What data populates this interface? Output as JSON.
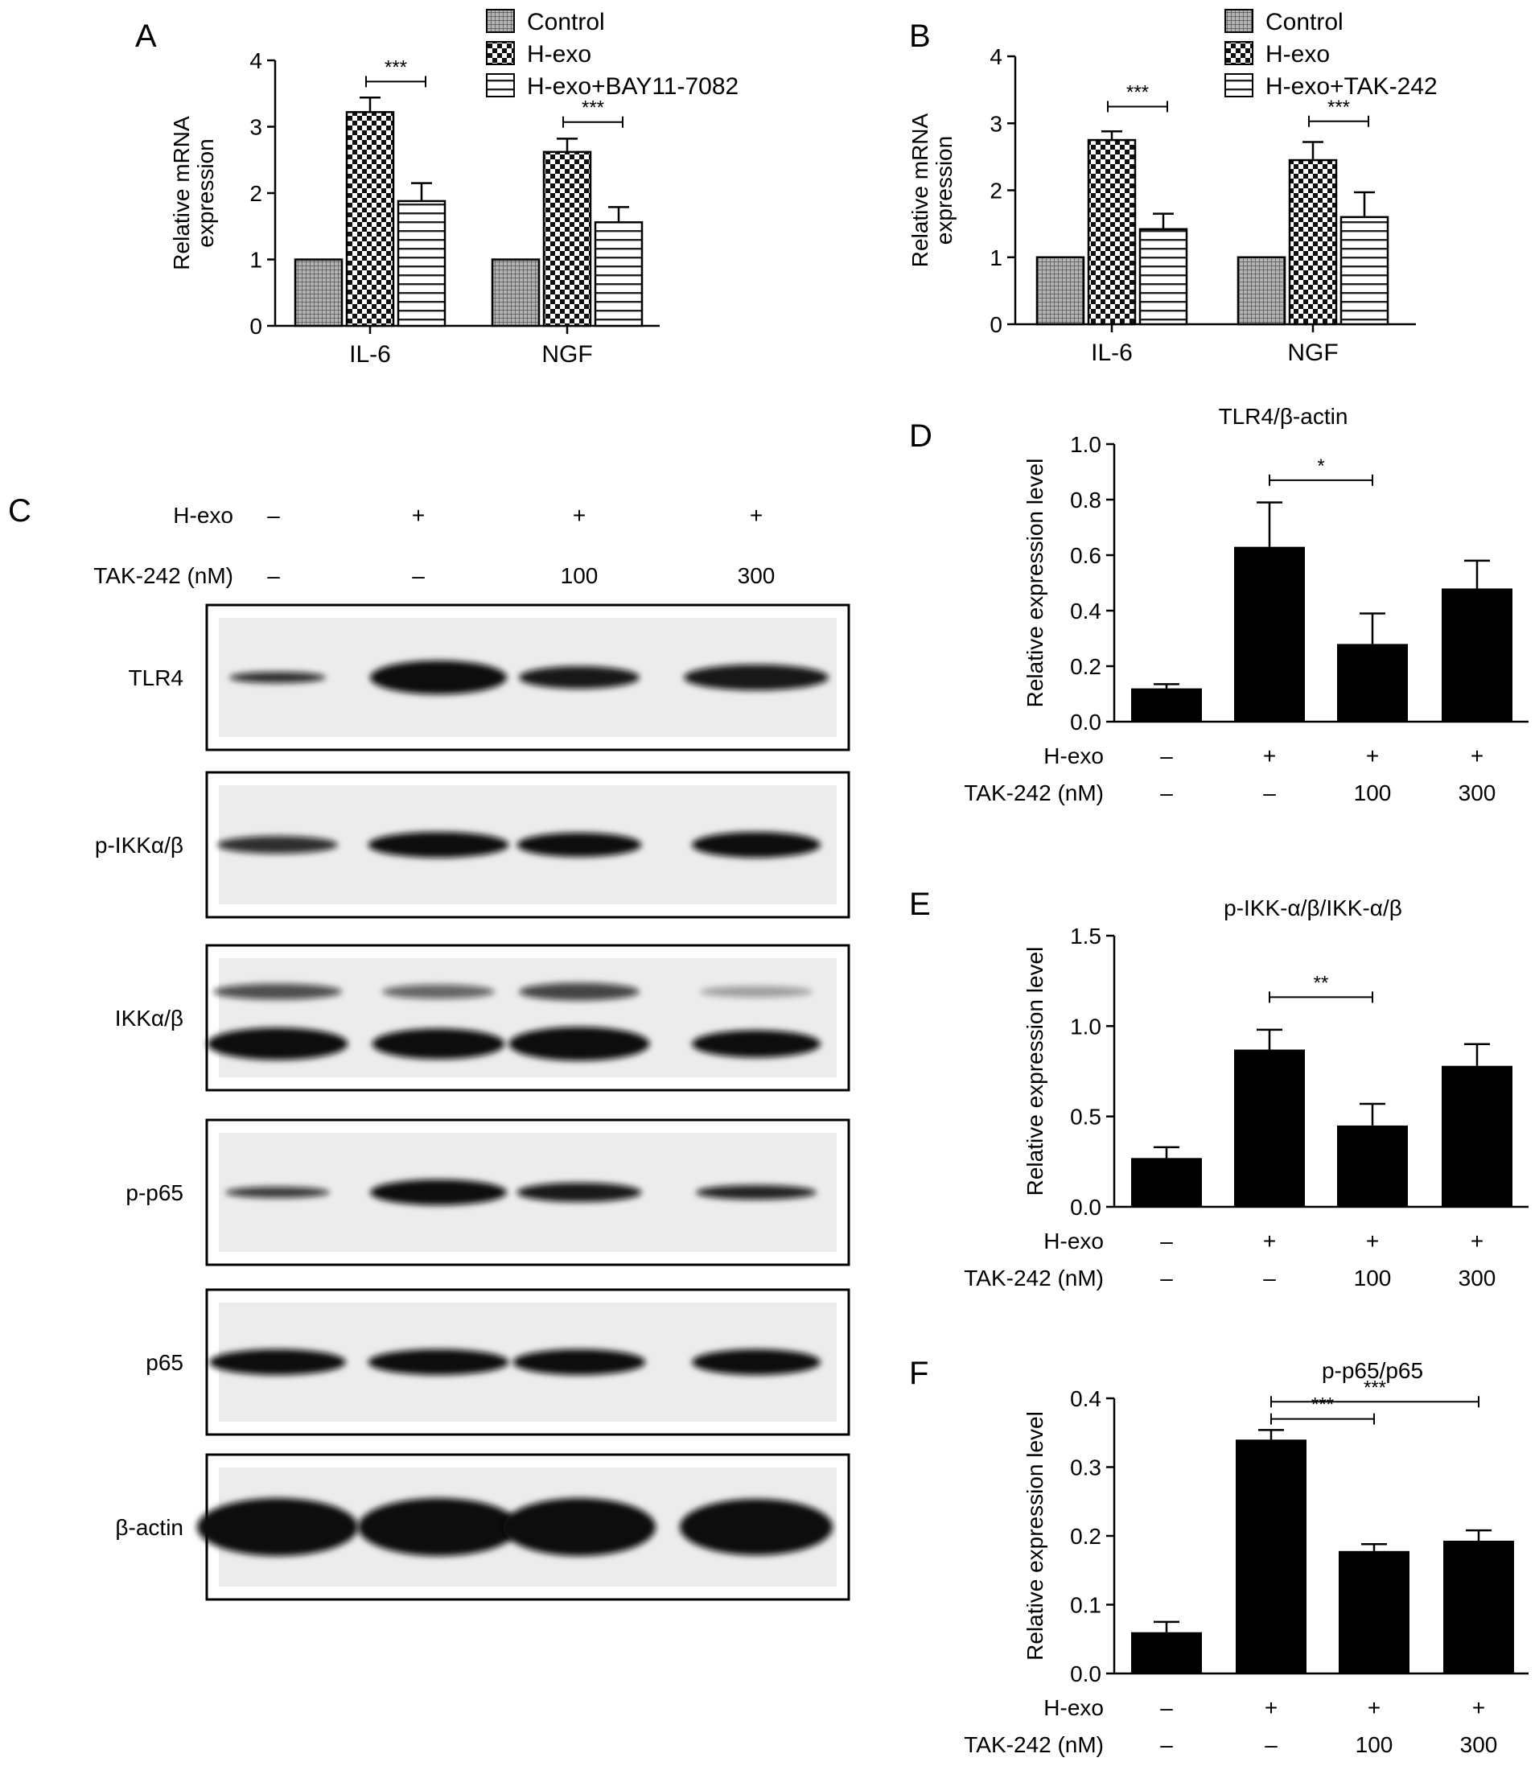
{
  "panels": {
    "A": {
      "letter": "A"
    },
    "B": {
      "letter": "B"
    },
    "C": {
      "letter": "C"
    },
    "D": {
      "letter": "D"
    },
    "E": {
      "letter": "E"
    },
    "F": {
      "letter": "F"
    }
  },
  "blot": {
    "row_labels": {
      "hexo": "H-exo",
      "tak": "TAK-242 (nM)"
    },
    "hexo_marks": [
      "–",
      "+",
      "+",
      "+"
    ],
    "tak_marks": [
      "–",
      "–",
      "100",
      "300"
    ],
    "proteins": [
      "TLR4",
      "p-IKKα/β",
      "IKKα/β",
      "p-p65",
      "p65",
      "β-actin"
    ]
  },
  "chart_data": [
    {
      "id": "A",
      "type": "bar",
      "title": "",
      "ylabel": "Relative mRNA expression",
      "ylabel_lines": [
        "Relative mRNA",
        "expression"
      ],
      "categories": [
        "IL-6",
        "NGF"
      ],
      "ylim": [
        0,
        4
      ],
      "yticks": [
        "0",
        "1",
        "2",
        "3",
        "4"
      ],
      "series": [
        {
          "name": "Control",
          "pattern": "grid",
          "values": [
            1.0,
            1.0
          ],
          "errors": [
            0,
            0
          ]
        },
        {
          "name": "H-exo",
          "pattern": "checker",
          "values": [
            3.22,
            2.62
          ],
          "errors": [
            0.22,
            0.2
          ]
        },
        {
          "name": "H-exo+BAY11-7082",
          "pattern": "hlines",
          "values": [
            1.88,
            1.56
          ],
          "errors": [
            0.27,
            0.23
          ]
        }
      ],
      "significance": [
        {
          "category": "IL-6",
          "from_series": 1,
          "to_series": 2,
          "label": "***",
          "y": 3.68
        },
        {
          "category": "NGF",
          "from_series": 1,
          "to_series": 2,
          "label": "***",
          "y": 3.07
        }
      ],
      "legend_position": "top-right"
    },
    {
      "id": "B",
      "type": "bar",
      "title": "",
      "ylabel": "Relative mRNA expression",
      "ylabel_lines": [
        "Relative mRNA",
        "expression"
      ],
      "categories": [
        "IL-6",
        "NGF"
      ],
      "ylim": [
        0,
        4
      ],
      "yticks": [
        "0",
        "1",
        "2",
        "3",
        "4"
      ],
      "series": [
        {
          "name": "Control",
          "pattern": "grid",
          "values": [
            1.0,
            1.0
          ],
          "errors": [
            0,
            0
          ]
        },
        {
          "name": "H-exo",
          "pattern": "checker",
          "values": [
            2.75,
            2.45
          ],
          "errors": [
            0.13,
            0.27
          ]
        },
        {
          "name": "H-exo+TAK-242",
          "pattern": "hlines",
          "values": [
            1.42,
            1.6
          ],
          "errors": [
            0.23,
            0.37
          ]
        }
      ],
      "significance": [
        {
          "category": "IL-6",
          "from_series": 1,
          "to_series": 2,
          "label": "***",
          "y": 3.25
        },
        {
          "category": "NGF",
          "from_series": 1,
          "to_series": 2,
          "label": "***",
          "y": 3.03
        }
      ],
      "legend_position": "top-right"
    },
    {
      "id": "D",
      "type": "bar",
      "title": "TLR4/β-actin",
      "ylabel": "Relative expression level",
      "ylim": [
        0,
        1.0
      ],
      "yticks": [
        "0.0",
        "0.2",
        "0.4",
        "0.6",
        "0.8",
        "1.0"
      ],
      "values": [
        0.12,
        0.63,
        0.28,
        0.48
      ],
      "errors": [
        0.015,
        0.16,
        0.11,
        0.1
      ],
      "hexo_marks": [
        "–",
        "+",
        "+",
        "+"
      ],
      "tak_marks": [
        "–",
        "–",
        "100",
        "300"
      ],
      "row_labels": [
        "H-exo",
        "TAK-242 (nM)"
      ],
      "significance": [
        {
          "from": 1,
          "to": 2,
          "label": "*",
          "y": 0.87
        }
      ]
    },
    {
      "id": "E",
      "type": "bar",
      "title": "p-IKK-α/β/IKK-α/β",
      "ylabel": "Relative expression level",
      "ylim": [
        0,
        1.5
      ],
      "yticks": [
        "0.0",
        "0.5",
        "1.0",
        "1.5"
      ],
      "values": [
        0.27,
        0.87,
        0.45,
        0.78
      ],
      "errors": [
        0.06,
        0.11,
        0.12,
        0.12
      ],
      "hexo_marks": [
        "–",
        "+",
        "+",
        "+"
      ],
      "tak_marks": [
        "–",
        "–",
        "100",
        "300"
      ],
      "row_labels": [
        "H-exo",
        "TAK-242 (nM)"
      ],
      "significance": [
        {
          "from": 1,
          "to": 2,
          "label": "**",
          "y": 1.16
        }
      ]
    },
    {
      "id": "F",
      "type": "bar",
      "title": "p-p65/p65",
      "ylabel": "Relative expression level",
      "ylim": [
        0,
        0.4
      ],
      "yticks": [
        "0.0",
        "0.1",
        "0.2",
        "0.3",
        "0.4"
      ],
      "values": [
        0.06,
        0.34,
        0.178,
        0.193
      ],
      "errors": [
        0.015,
        0.014,
        0.01,
        0.015
      ],
      "hexo_marks": [
        "–",
        "+",
        "+",
        "+"
      ],
      "tak_marks": [
        "–",
        "–",
        "100",
        "300"
      ],
      "row_labels": [
        "H-exo",
        "TAK-242 (nM)"
      ],
      "significance": [
        {
          "from": 1,
          "to": 2,
          "label": "***",
          "y": 0.37
        },
        {
          "from": 1,
          "to": 3,
          "label": "***",
          "y": 0.395
        }
      ]
    }
  ]
}
